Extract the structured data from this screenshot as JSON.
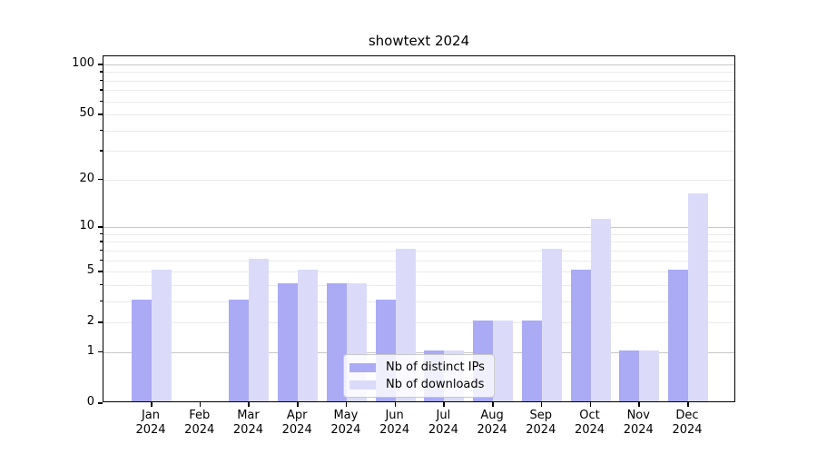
{
  "chart_data": {
    "type": "bar",
    "title": "showtext 2024",
    "year_label": "2024",
    "categories": [
      "Jan",
      "Feb",
      "Mar",
      "Apr",
      "May",
      "Jun",
      "Jul",
      "Aug",
      "Sep",
      "Oct",
      "Nov",
      "Dec"
    ],
    "series": [
      {
        "name": "Nb of distinct IPs",
        "color": "#aaaaf5",
        "values": [
          3,
          0,
          3,
          4,
          4,
          3,
          1,
          2,
          2,
          5,
          1,
          5
        ]
      },
      {
        "name": "Nb of downloads",
        "color": "#dbdbf9",
        "values": [
          5,
          0,
          6,
          5,
          4,
          7,
          1,
          2,
          7,
          11,
          1,
          16
        ]
      }
    ],
    "yscale": "log1p",
    "ylim": [
      0,
      112
    ],
    "y_tick_labels": [
      0,
      1,
      2,
      5,
      10,
      20,
      50,
      100
    ],
    "gridlines_major": [
      1,
      10,
      100
    ],
    "gridlines_minor": [
      2,
      3,
      4,
      5,
      6,
      7,
      8,
      9,
      20,
      30,
      40,
      50,
      60,
      70,
      80,
      90
    ],
    "grid_on": true,
    "legend_position": "bottom-center",
    "colors": {
      "major_grid": "#c8c8c8",
      "minor_grid": "#ebebeb",
      "axis": "#000000",
      "background": "#ffffff",
      "bar_distinct_ips": "#aaaaf5",
      "bar_downloads": "#dbdbf9"
    }
  }
}
